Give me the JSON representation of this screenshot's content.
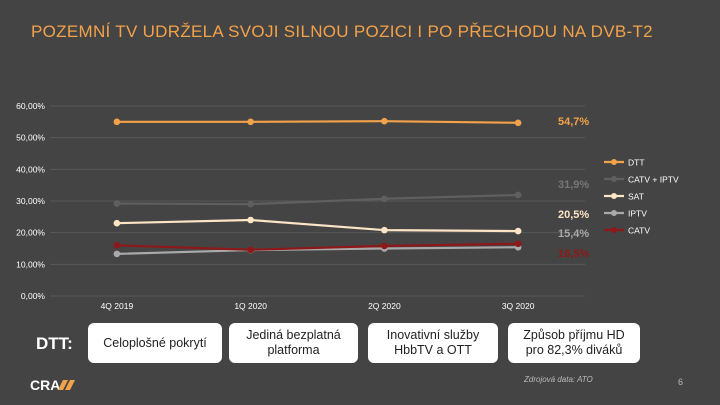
{
  "title": "POZEMNÍ TV UDRŽELA SVOJI SILNOU POZICI I PO PŘECHODU NA DVB-T2",
  "chart_data": {
    "type": "line",
    "categories": [
      "4Q 2019",
      "1Q 2020",
      "2Q 2020",
      "3Q 2020"
    ],
    "ylim": [
      0,
      60
    ],
    "yticks": [
      "0,00%",
      "10,00%",
      "20,00%",
      "30,00%",
      "40,00%",
      "50,00%",
      "60,00%"
    ],
    "grid": true,
    "legend_position": "right",
    "series": [
      {
        "name": "DTT",
        "values": [
          55.0,
          55.0,
          55.2,
          54.7
        ],
        "color": "#F3A24A",
        "end_label": "54,7%"
      },
      {
        "name": "CATV + IPTV",
        "values": [
          29.2,
          29.0,
          30.7,
          31.9
        ],
        "color": "#5f5f5f",
        "end_label": "31,9%"
      },
      {
        "name": "SAT",
        "values": [
          23.0,
          24.0,
          20.8,
          20.5
        ],
        "color": "#FCE4C4",
        "end_label": "20,5%"
      },
      {
        "name": "IPTV",
        "values": [
          13.3,
          14.5,
          15.0,
          15.4
        ],
        "color": "#A9A9A9",
        "end_label": "15,4%"
      },
      {
        "name": "CATV",
        "values": [
          16.0,
          14.6,
          15.8,
          16.5
        ],
        "color": "#8E1818",
        "end_label": "16,5%"
      }
    ]
  },
  "dtt_label": "DTT:",
  "features": [
    "Celoplošné pokrytí",
    "Jediná bezplatná platforma",
    "Inovativní služby HbbTV a OTT",
    "Způsob příjmu HD pro 82,3% diváků"
  ],
  "logo_text": "CRA",
  "source": "Zdrojová data: ATO",
  "page_number": "6",
  "colors": {
    "background": "#444444",
    "accent": "#F3A24A"
  }
}
